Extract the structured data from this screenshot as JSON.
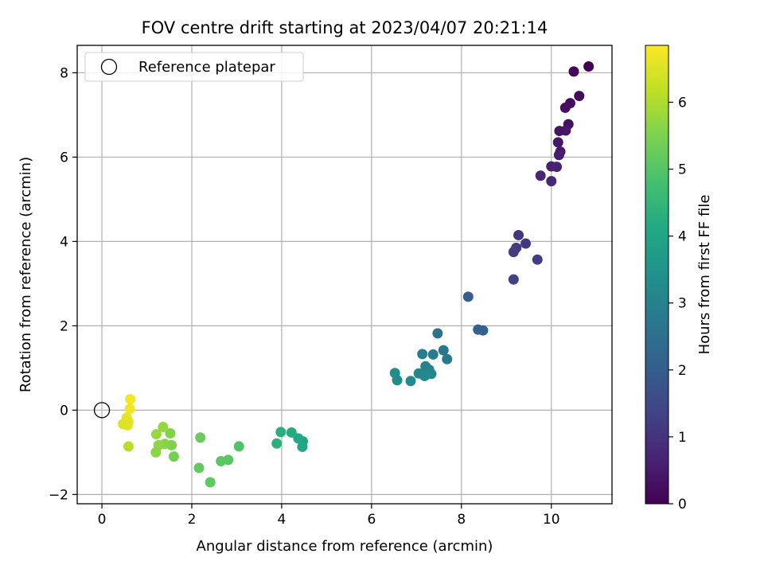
{
  "chart_data": {
    "type": "scatter",
    "title": "FOV centre drift starting at 2023/04/07 20:21:14",
    "xlabel": "Angular distance from reference (arcmin)",
    "ylabel": "Rotation from reference (arcmin)",
    "xlim": [
      -0.55,
      11.35
    ],
    "ylim": [
      -2.22,
      8.65
    ],
    "x_ticks": [
      0,
      2,
      4,
      6,
      8,
      10
    ],
    "y_ticks": [
      -2,
      0,
      2,
      4,
      6,
      8
    ],
    "grid": true,
    "legend": {
      "position": "top-left",
      "entries": [
        {
          "label": "Reference platepar",
          "marker": "open-circle"
        }
      ]
    },
    "reference_point": {
      "x": 0,
      "y": 0
    },
    "colorbar": {
      "label": "Hours from first FF file",
      "colormap": "viridis",
      "range": [
        0,
        6.85
      ],
      "ticks": [
        0,
        1,
        2,
        3,
        4,
        5,
        6
      ]
    },
    "points": [
      {
        "x": 10.83,
        "y": 8.15,
        "c": 0.05
      },
      {
        "x": 10.5,
        "y": 8.03,
        "c": 0.1
      },
      {
        "x": 10.62,
        "y": 7.45,
        "c": 0.15
      },
      {
        "x": 10.42,
        "y": 7.28,
        "c": 0.2
      },
      {
        "x": 10.31,
        "y": 7.17,
        "c": 0.25
      },
      {
        "x": 10.38,
        "y": 6.78,
        "c": 0.3
      },
      {
        "x": 10.18,
        "y": 6.62,
        "c": 0.35
      },
      {
        "x": 10.32,
        "y": 6.63,
        "c": 0.4
      },
      {
        "x": 10.15,
        "y": 6.35,
        "c": 0.45
      },
      {
        "x": 10.2,
        "y": 6.13,
        "c": 0.5
      },
      {
        "x": 10.17,
        "y": 6.05,
        "c": 0.55
      },
      {
        "x": 10.0,
        "y": 5.78,
        "c": 0.6
      },
      {
        "x": 10.12,
        "y": 5.77,
        "c": 0.65
      },
      {
        "x": 9.76,
        "y": 5.56,
        "c": 0.7
      },
      {
        "x": 10.0,
        "y": 5.43,
        "c": 0.75
      },
      {
        "x": 9.27,
        "y": 4.15,
        "c": 1.05
      },
      {
        "x": 9.43,
        "y": 3.95,
        "c": 1.1
      },
      {
        "x": 9.22,
        "y": 3.85,
        "c": 1.15
      },
      {
        "x": 9.16,
        "y": 3.75,
        "c": 1.2
      },
      {
        "x": 9.69,
        "y": 3.57,
        "c": 1.25
      },
      {
        "x": 9.16,
        "y": 3.1,
        "c": 1.3
      },
      {
        "x": 8.15,
        "y": 2.69,
        "c": 2.0
      },
      {
        "x": 8.37,
        "y": 1.91,
        "c": 2.1
      },
      {
        "x": 8.48,
        "y": 1.89,
        "c": 2.15
      },
      {
        "x": 7.47,
        "y": 1.82,
        "c": 2.6
      },
      {
        "x": 7.6,
        "y": 1.42,
        "c": 2.7
      },
      {
        "x": 7.68,
        "y": 1.21,
        "c": 2.75
      },
      {
        "x": 7.13,
        "y": 1.33,
        "c": 2.9
      },
      {
        "x": 7.37,
        "y": 1.32,
        "c": 2.85
      },
      {
        "x": 7.2,
        "y": 1.04,
        "c": 3.0
      },
      {
        "x": 7.28,
        "y": 0.96,
        "c": 3.05
      },
      {
        "x": 7.33,
        "y": 0.86,
        "c": 3.1
      },
      {
        "x": 7.05,
        "y": 0.87,
        "c": 3.15
      },
      {
        "x": 7.18,
        "y": 0.81,
        "c": 3.2
      },
      {
        "x": 6.52,
        "y": 0.88,
        "c": 3.3
      },
      {
        "x": 6.57,
        "y": 0.71,
        "c": 3.35
      },
      {
        "x": 6.87,
        "y": 0.69,
        "c": 3.25
      },
      {
        "x": 4.47,
        "y": -0.74,
        "c": 4.0
      },
      {
        "x": 4.46,
        "y": -0.87,
        "c": 4.05
      },
      {
        "x": 4.37,
        "y": -0.67,
        "c": 4.1
      },
      {
        "x": 4.22,
        "y": -0.53,
        "c": 4.2
      },
      {
        "x": 3.98,
        "y": -0.52,
        "c": 4.3
      },
      {
        "x": 3.89,
        "y": -0.79,
        "c": 4.35
      },
      {
        "x": 3.05,
        "y": -0.86,
        "c": 4.95
      },
      {
        "x": 2.81,
        "y": -1.18,
        "c": 5.05
      },
      {
        "x": 2.65,
        "y": -1.21,
        "c": 5.1
      },
      {
        "x": 2.41,
        "y": -1.71,
        "c": 5.15
      },
      {
        "x": 2.16,
        "y": -1.37,
        "c": 5.2
      },
      {
        "x": 2.19,
        "y": -0.65,
        "c": 5.25
      },
      {
        "x": 1.6,
        "y": -1.1,
        "c": 5.4
      },
      {
        "x": 1.52,
        "y": -0.55,
        "c": 5.55
      },
      {
        "x": 1.55,
        "y": -0.83,
        "c": 5.5
      },
      {
        "x": 1.4,
        "y": -0.8,
        "c": 5.6
      },
      {
        "x": 1.36,
        "y": -0.4,
        "c": 5.75
      },
      {
        "x": 1.26,
        "y": -0.83,
        "c": 5.7
      },
      {
        "x": 1.21,
        "y": -0.57,
        "c": 5.8
      },
      {
        "x": 1.2,
        "y": -1.0,
        "c": 5.65
      },
      {
        "x": 0.59,
        "y": -0.86,
        "c": 6.1
      },
      {
        "x": 0.63,
        "y": 0.26,
        "c": 6.75
      },
      {
        "x": 0.62,
        "y": 0.03,
        "c": 6.7
      },
      {
        "x": 0.59,
        "y": -0.27,
        "c": 6.65
      },
      {
        "x": 0.55,
        "y": -0.18,
        "c": 6.6
      },
      {
        "x": 0.57,
        "y": -0.36,
        "c": 6.55
      },
      {
        "x": 0.47,
        "y": -0.33,
        "c": 6.5
      }
    ]
  }
}
